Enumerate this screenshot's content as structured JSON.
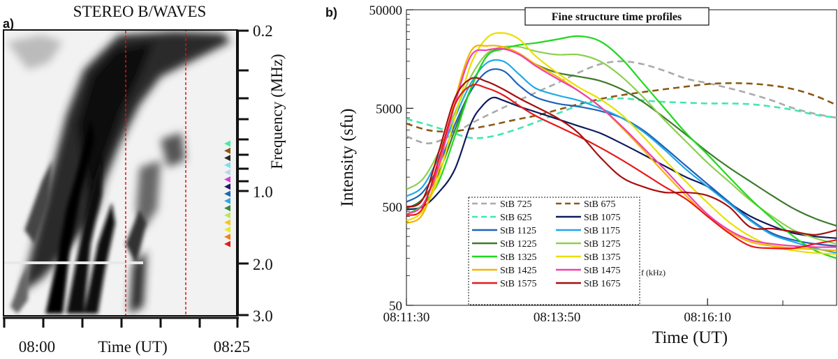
{
  "chart_data": [
    {
      "panel": "a)",
      "type": "heatmap",
      "title": "STEREO B/WAVES",
      "xlabel": "Time (UT)",
      "ylabel": "Frequency (MHz)",
      "x_tick_labels": [
        "08:00",
        "08:25"
      ],
      "y_tick_labels": [
        "0.2",
        "1.0",
        "2.0",
        "3.0"
      ],
      "highlight_region": "red dashed box",
      "arrow_colors": [
        "#3cf0a0",
        "#8a5a16",
        "#2a2a2a",
        "#7ae0f0",
        "#b8d8e8",
        "#cc44cc",
        "#1a1a6e",
        "#1a6ab8",
        "#28a8e8",
        "#3a8a3a",
        "#b8e85a",
        "#f0c820",
        "#e8e820",
        "#f08020",
        "#e81818"
      ]
    },
    {
      "panel": "b)",
      "type": "line",
      "title": "Fine structure time profiles",
      "xlabel": "Time (UT)",
      "ylabel": "Intensity (sfu)",
      "y_scale": "log",
      "ylim": [
        50,
        50000
      ],
      "y_ticks": [
        50,
        500,
        5000,
        50000
      ],
      "y_tick_labels": [
        "50",
        "500",
        "5000",
        "50000"
      ],
      "xlim_seconds": [
        0,
        400
      ],
      "x_ticks_seconds": [
        0,
        140,
        280
      ],
      "x_tick_labels": [
        "08:11:30",
        "08:13:50",
        "08:16:10"
      ],
      "x_minor_ticks_seconds": [
        70,
        210,
        350
      ],
      "legend_note": "f (kHz)",
      "series": [
        {
          "name": "StB 725",
          "color": "#aaaaaa",
          "dashed": true,
          "t": [
            0,
            20,
            40,
            60,
            80,
            100,
            120,
            140,
            160,
            180,
            200,
            220,
            240,
            260,
            280,
            300,
            320,
            340,
            360,
            380,
            400
          ],
          "values": [
            2600,
            2200,
            2600,
            3500,
            4500,
            5700,
            7200,
            9000,
            11500,
            14000,
            15000,
            14000,
            12000,
            10000,
            9000,
            8000,
            7000,
            6000,
            5000,
            4400,
            4000
          ]
        },
        {
          "name": "StB 675",
          "color": "#8a5a16",
          "dashed": true,
          "t": [
            0,
            20,
            40,
            60,
            80,
            100,
            120,
            140,
            160,
            180,
            200,
            220,
            240,
            260,
            280,
            300,
            320,
            340,
            360,
            380,
            400
          ],
          "values": [
            3500,
            3000,
            2900,
            3100,
            3400,
            3800,
            4200,
            4800,
            5500,
            6200,
            6800,
            7300,
            7800,
            8300,
            8800,
            9000,
            8900,
            8500,
            7800,
            6700,
            5400
          ]
        },
        {
          "name": "StB 625",
          "color": "#40e8b0",
          "dashed": true,
          "t": [
            0,
            20,
            40,
            60,
            80,
            100,
            120,
            140,
            160,
            180,
            200,
            220,
            240,
            260,
            280,
            300,
            320,
            340,
            360,
            380,
            400
          ],
          "values": [
            3900,
            3400,
            2900,
            2500,
            2600,
            3000,
            3600,
            4400,
            5300,
            6000,
            6300,
            6000,
            5800,
            5700,
            5600,
            5600,
            5500,
            5200,
            4800,
            4300,
            4000
          ]
        },
        {
          "name": "StB 1075",
          "color": "#0e1a5e",
          "dashed": false,
          "t": [
            0,
            15,
            30,
            45,
            60,
            70,
            80,
            90,
            105,
            120,
            140,
            160,
            180,
            200,
            220,
            240,
            260,
            280,
            300,
            320,
            340,
            360,
            380,
            400
          ],
          "values": [
            470,
            500,
            700,
            1200,
            3500,
            5200,
            6400,
            6000,
            5200,
            4600,
            3900,
            3300,
            2800,
            2200,
            1700,
            1300,
            1000,
            800,
            550,
            400,
            320,
            270,
            250,
            240
          ]
        },
        {
          "name": "StB 1125",
          "color": "#1e62b8",
          "dashed": false,
          "t": [
            0,
            15,
            30,
            45,
            60,
            75,
            90,
            105,
            120,
            140,
            160,
            180,
            200,
            220,
            240,
            260,
            280,
            300,
            320,
            340,
            360,
            380,
            400
          ],
          "values": [
            560,
            700,
            1300,
            3400,
            7500,
            11800,
            12000,
            8500,
            6500,
            5600,
            5200,
            4700,
            4000,
            3000,
            2000,
            1300,
            850,
            560,
            370,
            270,
            230,
            210,
            200
          ]
        },
        {
          "name": "StB 1175",
          "color": "#20a8e8",
          "dashed": false,
          "t": [
            0,
            15,
            30,
            45,
            60,
            75,
            90,
            105,
            120,
            140,
            160,
            180,
            200,
            220,
            240,
            260,
            280,
            300,
            320,
            340,
            360,
            380,
            400
          ],
          "values": [
            640,
            800,
            1600,
            4000,
            9000,
            14500,
            15000,
            11000,
            8000,
            6800,
            6000,
            5000,
            4000,
            2900,
            1900,
            1200,
            800,
            540,
            360,
            260,
            220,
            190,
            170
          ]
        },
        {
          "name": "StB 1225",
          "color": "#3d7a2c",
          "dashed": false,
          "t": [
            0,
            15,
            30,
            45,
            60,
            75,
            90,
            105,
            120,
            140,
            160,
            180,
            200,
            220,
            240,
            260,
            280,
            300,
            320,
            340,
            360,
            380,
            400
          ],
          "values": [
            480,
            600,
            1100,
            3000,
            8000,
            17000,
            20000,
            17500,
            14000,
            11500,
            10500,
            9500,
            7800,
            5800,
            4000,
            2700,
            1800,
            1250,
            900,
            650,
            480,
            380,
            320
          ]
        },
        {
          "name": "StB 1275",
          "color": "#8cd04e",
          "dashed": false,
          "t": [
            0,
            15,
            30,
            45,
            60,
            75,
            90,
            105,
            120,
            140,
            160,
            180,
            200,
            220,
            240,
            260,
            280,
            300,
            320,
            340,
            360,
            380,
            400
          ],
          "values": [
            750,
            950,
            1800,
            4500,
            10500,
            18000,
            21000,
            21000,
            19000,
            17500,
            17500,
            15000,
            10500,
            6500,
            3800,
            2300,
            1400,
            900,
            580,
            400,
            290,
            240,
            210
          ]
        },
        {
          "name": "StB 1325",
          "color": "#1ed81e",
          "dashed": false,
          "t": [
            0,
            15,
            30,
            45,
            60,
            75,
            90,
            105,
            120,
            140,
            160,
            180,
            200,
            220,
            240,
            260,
            280,
            300,
            320,
            340,
            360,
            380,
            400
          ],
          "values": [
            420,
            520,
            900,
            2600,
            8000,
            17000,
            20000,
            22000,
            23000,
            25000,
            27000,
            24000,
            16000,
            9000,
            5000,
            2800,
            1700,
            1000,
            600,
            380,
            250,
            180,
            150
          ]
        },
        {
          "name": "StB 1375",
          "color": "#e8e000",
          "dashed": false,
          "t": [
            0,
            15,
            30,
            45,
            60,
            75,
            90,
            105,
            120,
            140,
            160,
            180,
            200,
            220,
            240,
            260,
            280,
            300,
            320,
            340,
            360,
            380,
            400
          ],
          "values": [
            360,
            450,
            1000,
            4000,
            14000,
            26000,
            29000,
            25000,
            17000,
            11500,
            8200,
            6200,
            4300,
            2600,
            1500,
            900,
            550,
            350,
            250,
            200,
            180,
            170,
            165
          ]
        },
        {
          "name": "StB 1425",
          "color": "#f5b400",
          "dashed": false,
          "t": [
            0,
            15,
            30,
            45,
            60,
            75,
            90,
            105,
            120,
            140,
            160,
            180,
            200,
            220,
            240,
            260,
            280,
            300,
            320,
            340,
            360,
            380,
            400
          ],
          "values": [
            340,
            420,
            1200,
            6000,
            19000,
            21500,
            21000,
            18000,
            14000,
            10500,
            7500,
            5200,
            3200,
            1900,
            1100,
            650,
            400,
            280,
            220,
            200,
            190,
            185,
            180
          ]
        },
        {
          "name": "StB 1475",
          "color": "#f040b0",
          "dashed": false,
          "t": [
            0,
            15,
            30,
            45,
            60,
            75,
            90,
            105,
            120,
            140,
            160,
            180,
            200,
            220,
            240,
            260,
            280,
            300,
            320,
            340,
            360,
            380,
            400
          ],
          "values": [
            420,
            520,
            1300,
            5500,
            17000,
            19500,
            20000,
            17500,
            13500,
            10000,
            7500,
            5200,
            3300,
            2000,
            1200,
            700,
            420,
            290,
            230,
            210,
            200,
            195,
            195
          ]
        },
        {
          "name": "StB 1575",
          "color": "#e81818",
          "dashed": false,
          "t": [
            0,
            15,
            30,
            45,
            60,
            75,
            90,
            105,
            120,
            140,
            160,
            180,
            200,
            220,
            240,
            260,
            280,
            300,
            320,
            340,
            360,
            380,
            400
          ],
          "values": [
            410,
            480,
            1500,
            5400,
            8500,
            8000,
            6800,
            5300,
            4200,
            3300,
            2600,
            2000,
            1500,
            1100,
            800,
            600,
            400,
            270,
            200,
            190,
            190,
            210,
            230
          ]
        },
        {
          "name": "StB 1675",
          "color": "#a80e0e",
          "dashed": false,
          "t": [
            0,
            15,
            30,
            45,
            60,
            75,
            90,
            105,
            120,
            140,
            160,
            180,
            200,
            220,
            240,
            260,
            280,
            300,
            320,
            340,
            360,
            380,
            400
          ],
          "values": [
            500,
            590,
            1800,
            6300,
            10000,
            9300,
            7800,
            6300,
            5200,
            4000,
            2800,
            1600,
            1000,
            800,
            700,
            700,
            650,
            500,
            310,
            300,
            280,
            260,
            290
          ]
        }
      ]
    }
  ]
}
